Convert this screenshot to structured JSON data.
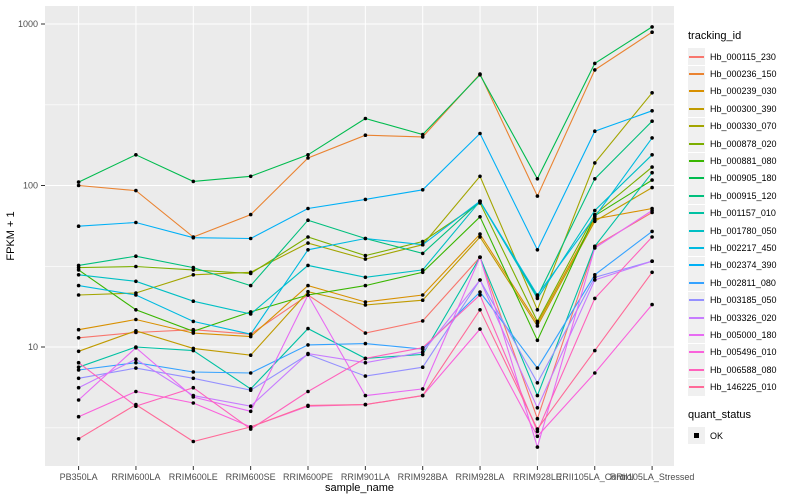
{
  "chart_data": {
    "type": "line",
    "title": "",
    "xlabel": "sample_name",
    "ylabel": "FPKM + 1",
    "y_scale": "log10",
    "y_ticks": [
      10,
      100,
      1000
    ],
    "y_tick_labels": [
      "10",
      "100",
      "1000"
    ],
    "y_minor": [
      3.16,
      31.6,
      316
    ],
    "ylim": [
      1.83,
      1290
    ],
    "grid": true,
    "panel_background": "#EBEBEB",
    "grid_color": "#FFFFFF",
    "axis_text_color": "#4D4D4D",
    "point_color": "#000000",
    "legend_title": "tracking_id",
    "legend2_title": "quant_status",
    "legend2_items": [
      {
        "label": "OK",
        "marker": "square",
        "color": "#000000"
      }
    ],
    "categories": [
      "PB350LA",
      "RRIM600LA",
      "RRIM600LE",
      "RRIM600SE",
      "RRIM600PE",
      "RRIM901LA",
      "RRIM928BA",
      "RRIM928LA",
      "RRIM928LE",
      "RRII105LA_Control",
      "RRII105LA_Stressed"
    ],
    "series": [
      {
        "name": "Hb_000115_230",
        "color": "#F8766D",
        "values": [
          11.4,
          12.3,
          12.8,
          12.0,
          21,
          12.2,
          14.5,
          36,
          3.6,
          42,
          68
        ]
      },
      {
        "name": "Hb_000236_150",
        "color": "#EA8331",
        "values": [
          100,
          93,
          48,
          66,
          148,
          205,
          200,
          490,
          86,
          520,
          890
        ]
      },
      {
        "name": "Hb_000239_030",
        "color": "#D89000",
        "values": [
          12.8,
          14.8,
          12.2,
          11.6,
          24,
          19,
          21,
          50,
          14,
          62,
          72
        ]
      },
      {
        "name": "Hb_000300_390",
        "color": "#C09B00",
        "values": [
          9.4,
          12.6,
          9.8,
          8.9,
          22,
          18.2,
          19.5,
          48,
          13.5,
          60,
          97
        ]
      },
      {
        "name": "Hb_000330_070",
        "color": "#A3A500",
        "values": [
          21,
          21.6,
          28,
          29,
          44,
          35,
          43,
          114,
          17,
          138,
          375
        ]
      },
      {
        "name": "Hb_000878_020",
        "color": "#7CAE00",
        "values": [
          31,
          31.5,
          30,
          28.5,
          48,
          36.8,
          45,
          78,
          14.4,
          66,
          130
        ]
      },
      {
        "name": "Hb_000881_080",
        "color": "#39B600",
        "values": [
          30,
          17,
          12.5,
          16.5,
          21,
          24,
          29,
          64,
          11,
          65,
          108
        ]
      },
      {
        "name": "Hb_000905_180",
        "color": "#00BB4E",
        "values": [
          105,
          155,
          106,
          114,
          155,
          260,
          207,
          485,
          110,
          570,
          960
        ]
      },
      {
        "name": "Hb_000915_120",
        "color": "#00BF7D",
        "values": [
          32,
          36.5,
          31,
          24,
          61,
          47,
          38,
          80,
          20.5,
          110,
          250
        ]
      },
      {
        "name": "Hb_001157_010",
        "color": "#00C1A3",
        "values": [
          7.5,
          10,
          9.5,
          5.5,
          13,
          8.5,
          9,
          36,
          5,
          42,
          120
        ]
      },
      {
        "name": "Hb_001780_050",
        "color": "#00BFC4",
        "values": [
          28,
          25.5,
          19.2,
          16,
          32,
          27,
          30,
          80,
          20,
          70,
          155
        ]
      },
      {
        "name": "Hb_002217_450",
        "color": "#00BAE0",
        "values": [
          24,
          21,
          14.4,
          12,
          40,
          47,
          43,
          80,
          21,
          64,
          197
        ]
      },
      {
        "name": "Hb_002374_390",
        "color": "#00B0F6",
        "values": [
          56,
          59,
          47.5,
          47,
          72,
          82,
          94,
          210,
          40,
          217,
          290
        ]
      },
      {
        "name": "Hb_002811_080",
        "color": "#35A2FF",
        "values": [
          7.2,
          8,
          7,
          6.9,
          10.3,
          10.5,
          9.7,
          21.9,
          7.4,
          28,
          52
        ]
      },
      {
        "name": "Hb_003185_050",
        "color": "#9590FF",
        "values": [
          6.4,
          7.4,
          6.4,
          5.4,
          9,
          6.6,
          7.5,
          26,
          6,
          27,
          34
        ]
      },
      {
        "name": "Hb_003326_020",
        "color": "#C77CFF",
        "values": [
          5.6,
          8.4,
          5.0,
          4.3,
          9.1,
          8.0,
          9.3,
          26,
          4.2,
          26,
          34
        ]
      },
      {
        "name": "Hb_005000_180",
        "color": "#E76BF3",
        "values": [
          4.7,
          9.9,
          4.9,
          4.0,
          21,
          5.0,
          5.5,
          36,
          2.4,
          41,
          70
        ]
      },
      {
        "name": "Hb_005496_010",
        "color": "#FA62DB",
        "values": [
          3.7,
          5.3,
          4.5,
          3.2,
          4.3,
          4.4,
          5.0,
          12.9,
          2.8,
          6.9,
          18.3
        ]
      },
      {
        "name": "Hb_006588_080",
        "color": "#FF62BC",
        "values": [
          8.0,
          4.3,
          5.6,
          3.1,
          5.3,
          8.5,
          9.9,
          21,
          3.0,
          20,
          48
        ]
      },
      {
        "name": "Hb_146225_010",
        "color": "#FF6A98",
        "values": [
          2.7,
          4.4,
          2.6,
          3.2,
          4.35,
          4.4,
          5.0,
          17,
          3.1,
          9.5,
          29
        ]
      }
    ]
  }
}
